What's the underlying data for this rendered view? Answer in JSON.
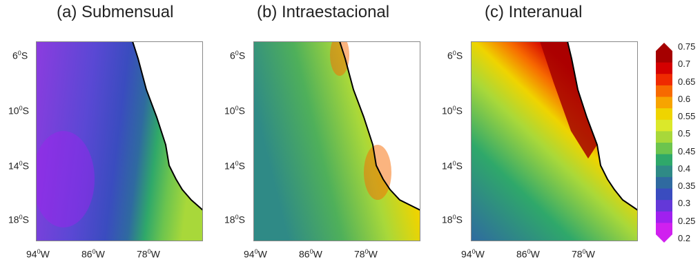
{
  "panels": [
    {
      "title": "(a) Submensual"
    },
    {
      "title": "(b) Intraestacional"
    },
    {
      "title": "(c) Interanual"
    }
  ],
  "lat_labels": [
    {
      "deg": "6",
      "hem": "S"
    },
    {
      "deg": "10",
      "hem": "S"
    },
    {
      "deg": "14",
      "hem": "S"
    },
    {
      "deg": "18",
      "hem": "S"
    }
  ],
  "lon_labels": [
    {
      "deg": "94",
      "hem": "W"
    },
    {
      "deg": "86",
      "hem": "W"
    },
    {
      "deg": "78",
      "hem": "W"
    }
  ],
  "colorbar": {
    "labels": [
      "0.75",
      "0.7",
      "0.65",
      "0.6",
      "0.55",
      "0.5",
      "0.45",
      "0.4",
      "0.35",
      "0.3",
      "0.25",
      "0.2"
    ],
    "colors": [
      "#a50000",
      "#d40000",
      "#ef2a00",
      "#f76a00",
      "#f7a400",
      "#efd400",
      "#dbe82a",
      "#a8d83a",
      "#6cc44e",
      "#2fa86a",
      "#2f8a86",
      "#2f6aa0",
      "#3a4cbf",
      "#6438d8",
      "#a020ef",
      "#d020ef"
    ]
  }
}
